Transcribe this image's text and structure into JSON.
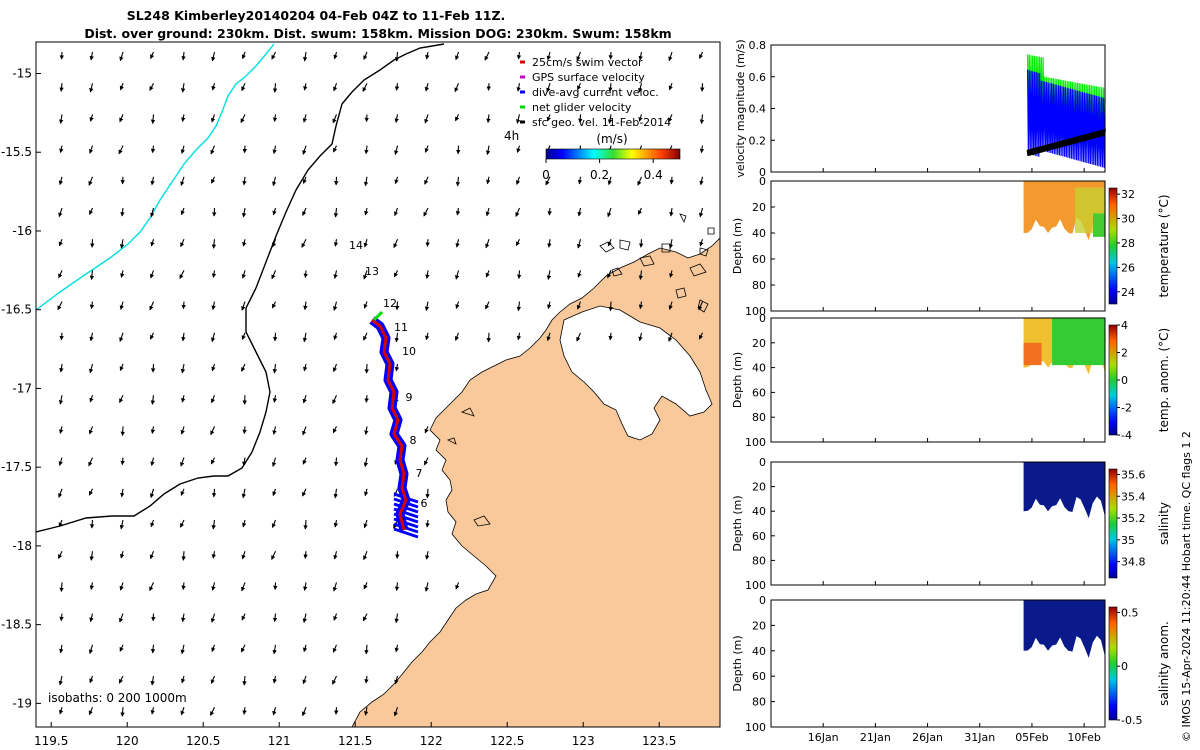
{
  "chart_data": {
    "type": "map",
    "title_line1": "SL248 Kimberley20140204 04-Feb 04Z to 11-Feb 11Z.",
    "title_line2": "Dist. over ground: 230km. Dist. swum: 158km. Mission DOG: 230km. Swum: 158km",
    "map": {
      "lon_ticks": [
        "119.5",
        "120",
        "120.5",
        "121",
        "121.5",
        "122",
        "122.5",
        "123",
        "123.5"
      ],
      "lat_ticks": [
        "-15",
        "-15.5",
        "-16",
        "-16.5",
        "-17",
        "-17.5",
        "-18",
        "-18.5",
        "-19"
      ],
      "lon_values": [
        119.5,
        120,
        120.5,
        121,
        121.5,
        122,
        122.5,
        123,
        123.5
      ],
      "lat_values": [
        -15,
        -15.5,
        -16,
        -16.5,
        -17,
        -17.5,
        -18,
        -18.5,
        -19
      ],
      "xlim": [
        119.4,
        123.9
      ],
      "ylim": [
        -19.15,
        -14.8
      ],
      "legend": [
        {
          "label": "25cm/s swim vector",
          "color": "#d40000"
        },
        {
          "label": "GPS surface velocity",
          "color": "#cc00cc"
        },
        {
          "label": "dive-avg current veloc.",
          "color": "#0000ff"
        },
        {
          "label": "net glider velocity",
          "color": "#00dd00"
        },
        {
          "label": "sfc geo. vel. 11-Feb-2014",
          "color": "#000000"
        }
      ],
      "colorbar_label": "(m/s)",
      "colorbar_ticks": [
        "0",
        "0.2",
        "0.4"
      ],
      "colorbar_values": [
        0,
        0.2,
        0.4
      ],
      "colorbar_range": [
        0,
        0.5
      ],
      "vector_scale_label": "4h",
      "day_labels": [
        "14",
        "13",
        "12",
        "11",
        "10",
        "9",
        "8",
        "7",
        "6"
      ],
      "isobath_text": "isobaths: 0   200  1000m"
    },
    "panels": [
      {
        "ylabel": "velocity magnitude (m/s)",
        "yticks": [
          "0",
          "0.2",
          "0.4",
          "0.6",
          "0.8"
        ],
        "ylim": [
          0,
          0.8
        ]
      },
      {
        "ylabel": "Depth (m)",
        "yticks": [
          "0",
          "20",
          "40",
          "60",
          "80",
          "100"
        ],
        "ylim": [
          0,
          100
        ],
        "cbar_label": "temperature (°C)",
        "cbar_ticks": [
          "24",
          "26",
          "28",
          "30",
          "32"
        ],
        "cbar_range": [
          23,
          32.5
        ]
      },
      {
        "ylabel": "Depth (m)",
        "yticks": [
          "0",
          "20",
          "40",
          "60",
          "80",
          "100"
        ],
        "ylim": [
          0,
          100
        ],
        "cbar_label": "temp. anom. (°C)",
        "cbar_ticks": [
          "-4",
          "-2",
          "0",
          "2",
          "4"
        ],
        "cbar_range": [
          -4,
          4
        ]
      },
      {
        "ylabel": "Depth (m)",
        "yticks": [
          "0",
          "20",
          "40",
          "60",
          "80",
          "100"
        ],
        "ylim": [
          0,
          100
        ],
        "cbar_label": "salinity",
        "cbar_ticks": [
          "34.8",
          "35",
          "35.2",
          "35.4",
          "35.6"
        ],
        "cbar_range": [
          34.65,
          35.65
        ]
      },
      {
        "ylabel": "Depth (m)",
        "yticks": [
          "0",
          "20",
          "40",
          "60",
          "80",
          "100"
        ],
        "ylim": [
          0,
          100
        ],
        "cbar_label": "salinity anom.",
        "cbar_ticks": [
          "-0.5",
          "0",
          "0.5"
        ],
        "cbar_range": [
          -0.5,
          0.55
        ]
      }
    ],
    "time_ticks": [
      "16Jan",
      "21Jan",
      "26Jan",
      "31Jan",
      "05Feb",
      "10Feb"
    ],
    "side_text": "© IMOS 15-Apr-2024 11:20:44 Hobart time. QC flags 1  2"
  }
}
